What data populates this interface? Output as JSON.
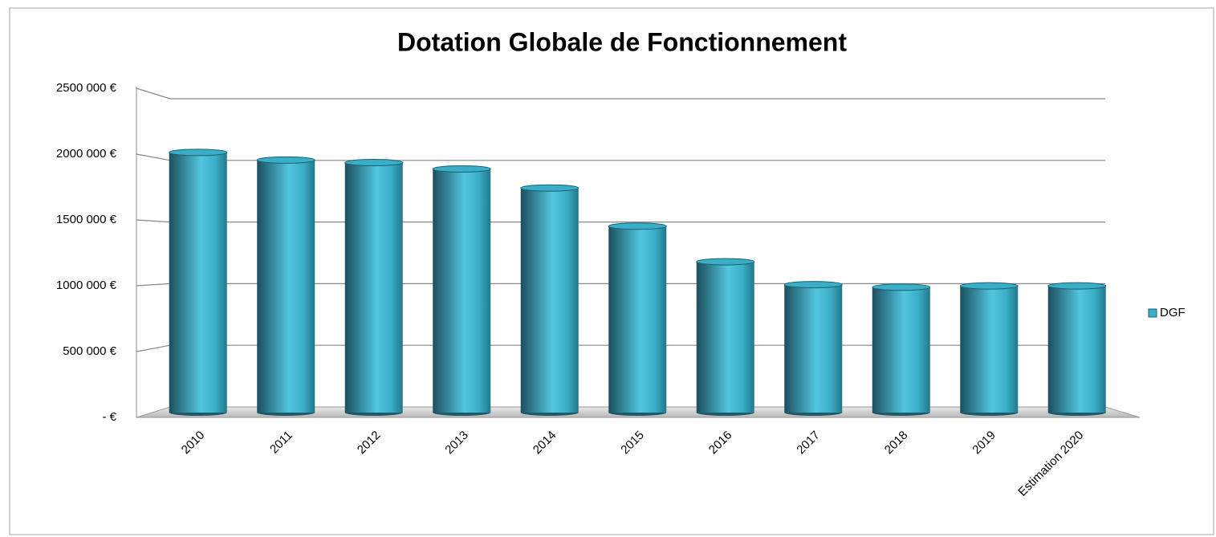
{
  "chart_data": {
    "type": "bar",
    "title": "Dotation Globale de Fonctionnement",
    "categories": [
      "2010",
      "2011",
      "2012",
      "2013",
      "2014",
      "2015",
      "2016",
      "2017",
      "2018",
      "2019",
      "Estimation 2020"
    ],
    "series": [
      {
        "name": "DGF",
        "color": "#3aaec7",
        "values": [
          2040000,
          1980000,
          1960000,
          1910000,
          1760000,
          1460000,
          1180000,
          1000000,
          980000,
          990000,
          990000
        ]
      }
    ],
    "ylim": [
      0,
      2500000
    ],
    "yticks": [
      {
        "value": 0,
        "label": "-  €"
      },
      {
        "value": 500000,
        "label": "500 000 €"
      },
      {
        "value": 1000000,
        "label": "1000 000 €"
      },
      {
        "value": 1500000,
        "label": "1500 000 €"
      },
      {
        "value": 2000000,
        "label": "2000 000 €"
      },
      {
        "value": 2500000,
        "label": "2500 000 €"
      }
    ],
    "grid": true,
    "legend": "right"
  }
}
